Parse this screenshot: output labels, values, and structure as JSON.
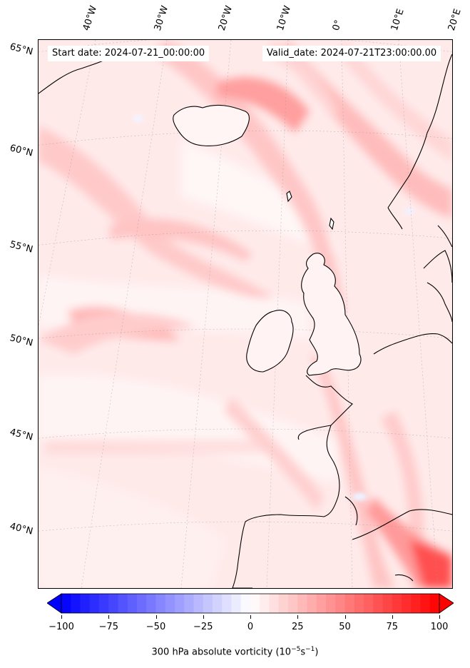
{
  "header": {
    "start_date": "Start date: 2024-07-21_00:00:00",
    "valid_date": "Valid_date: 2024-07-21T23:00:00.00"
  },
  "map": {
    "latitude_labels": [
      "65°N",
      "60°N",
      "55°N",
      "50°N",
      "45°N",
      "40°N"
    ],
    "longitude_labels": [
      "40°W",
      "30°W",
      "20°W",
      "10°W",
      "0°",
      "10°E",
      "20°E"
    ],
    "field_colors": {
      "weak": "#ffe9e9",
      "moderate": "#ffcaca",
      "strong": "#ff9d9d",
      "very_strong": "#ff4a4a",
      "negative": "#eef2ff",
      "coastline": "#000000"
    }
  },
  "colorbar": {
    "label": "300 hPa absolute vorticity (10",
    "label_exp1": "−5",
    "label_mid": "s",
    "label_exp2": "−1",
    "label_end": ")",
    "ticks": [
      "−100",
      "−75",
      "−50",
      "−25",
      "0",
      "25",
      "50",
      "75",
      "100"
    ],
    "min": -100,
    "max": 100,
    "low_color": "#0000ff",
    "mid_color": "#ffffff",
    "high_color": "#ff0000"
  }
}
